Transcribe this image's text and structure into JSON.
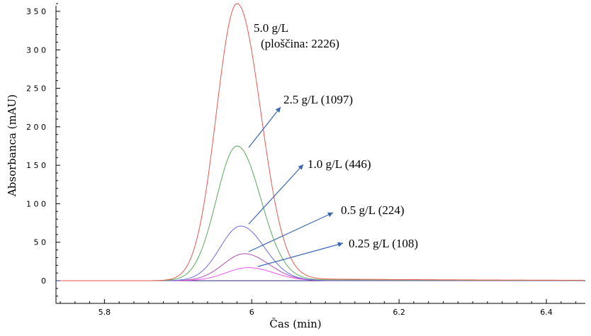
{
  "chart_data": {
    "type": "line",
    "xlabel": "Čas (min)",
    "ylabel": "Absorbanca (mAU)",
    "xlim": [
      5.74,
      6.45
    ],
    "ylim": [
      -30,
      370
    ],
    "x_ticks": [
      5.8,
      6.0,
      6.2,
      6.4
    ],
    "x_tick_labels": [
      "5.8",
      "6",
      "6.2",
      "6.4"
    ],
    "y_ticks": [
      0,
      50,
      100,
      150,
      200,
      250,
      300,
      350
    ],
    "y_tick_labels": [
      "0",
      "5 0",
      "1 0 0",
      "1 5 0",
      "2 0 0",
      "2 5 0",
      "3 0 0",
      "3 5 0"
    ],
    "grid": false,
    "series": [
      {
        "name": "5.0 g/L",
        "color": "#e8554e",
        "peak_x": 5.98,
        "peak_y": 360,
        "sigma": 0.028
      },
      {
        "name": "2.5 g/L",
        "color": "#5aaa5a",
        "peak_x": 5.98,
        "peak_y": 175,
        "sigma": 0.028
      },
      {
        "name": "1.0 g/L",
        "color": "#6a6ae8",
        "peak_x": 5.985,
        "peak_y": 71,
        "sigma": 0.028
      },
      {
        "name": "0.5 g/L",
        "color": "#b04fb0",
        "peak_x": 5.99,
        "peak_y": 35,
        "sigma": 0.029
      },
      {
        "name": "0.25 g/L",
        "color": "#ee55ee",
        "peak_x": 5.995,
        "peak_y": 17,
        "sigma": 0.03
      }
    ],
    "annotations": [
      {
        "line1": "5.0 g/L",
        "line2": "(ploščina: 2226)"
      },
      {
        "text": "2.5 g/L (1097)"
      },
      {
        "text": "1.0 g/L (446)"
      },
      {
        "text": "0.5 g/L (224)"
      },
      {
        "text": "0.25 g/L (108)"
      }
    ]
  }
}
